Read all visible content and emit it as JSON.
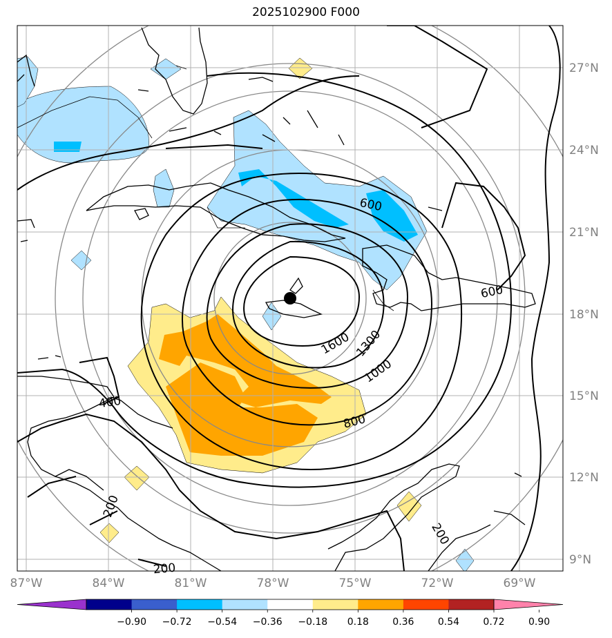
{
  "title": "2025102900 F000",
  "lat_labels": [
    "27°N",
    "24°N",
    "21°N",
    "18°N",
    "15°N",
    "12°N",
    "9°N"
  ],
  "lon_labels": [
    "87°W",
    "84°W",
    "81°W",
    "78°W",
    "75°W",
    "72°W",
    "69°W"
  ],
  "contour_labels": [
    "600",
    "600",
    "1600",
    "1300",
    "1000",
    "800",
    "400",
    "200",
    "200",
    "200"
  ],
  "colorbar": {
    "ticks": [
      "−0.90",
      "−0.72",
      "−0.54",
      "−0.36",
      "−0.18",
      "0.18",
      "0.36",
      "0.54",
      "0.72",
      "0.90"
    ],
    "colors": [
      "#9a32cd",
      "#00008b",
      "#3a5fcd",
      "#00bfff",
      "#b0e2ff",
      "#ffffff",
      "#ffec8b",
      "#ffa500",
      "#ff4500",
      "#b22222",
      "#ff82ab"
    ]
  },
  "center_marker": "storm-center"
}
